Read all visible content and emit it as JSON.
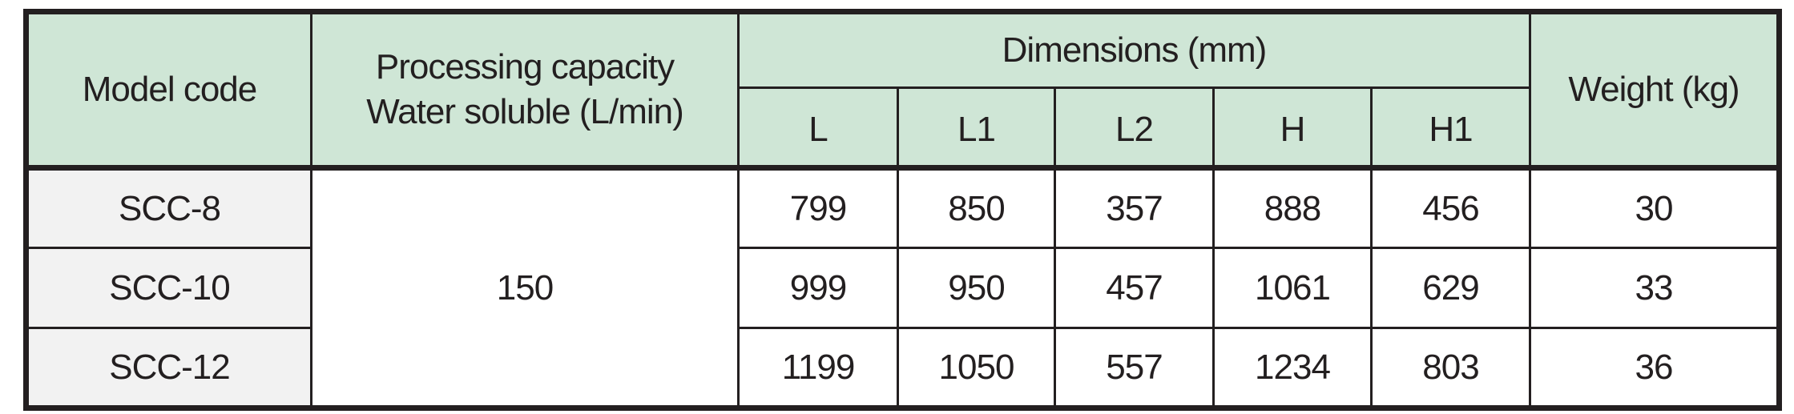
{
  "headers": {
    "model_code": "Model code",
    "capacity_line1": "Processing capacity",
    "capacity_line2": "Water soluble (L/min)",
    "dimensions": "Dimensions (mm)",
    "dim_cols": [
      "L",
      "L1",
      "L2",
      "H",
      "H1"
    ],
    "weight": "Weight (kg)"
  },
  "capacity_value": "150",
  "rows": [
    {
      "model": "SCC-8",
      "dims": [
        "799",
        "850",
        "357",
        "888",
        "456"
      ],
      "weight": "30"
    },
    {
      "model": "SCC-10",
      "dims": [
        "999",
        "950",
        "457",
        "1061",
        "629"
      ],
      "weight": "33"
    },
    {
      "model": "SCC-12",
      "dims": [
        "1199",
        "1050",
        "557",
        "1234",
        "803"
      ],
      "weight": "36"
    }
  ],
  "colors": {
    "header_bg": "#cfe6d6",
    "model_col_bg": "#f2f2f2",
    "border": "#231f20"
  }
}
